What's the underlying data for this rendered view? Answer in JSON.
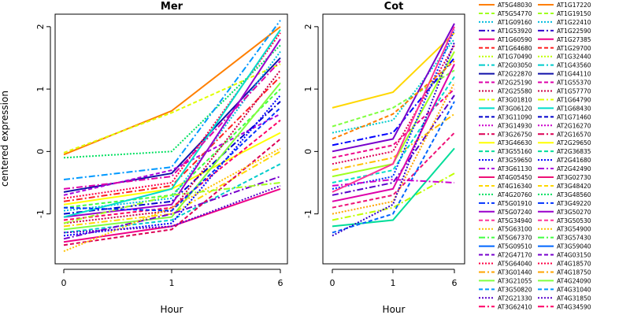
{
  "chart_data": [
    {
      "type": "line",
      "title": "Mer",
      "xlabel": "Hour",
      "ylabel": "centered expression",
      "x": [
        "0",
        "1",
        "6"
      ],
      "yticks": [
        -1,
        0,
        1,
        2
      ],
      "ylim": [
        -1.8,
        2.2
      ],
      "series": [
        {
          "values": [
            -0.05,
            0.65,
            2.0
          ]
        },
        {
          "values": [
            -0.02,
            0.62,
            1.4
          ]
        },
        {
          "values": [
            -0.1,
            0.0,
            1.7
          ]
        },
        {
          "values": [
            -0.45,
            -0.25,
            2.1
          ]
        },
        {
          "values": [
            -0.65,
            -0.35,
            1.5
          ]
        },
        {
          "values": [
            -0.7,
            -0.3,
            0.6
          ]
        },
        {
          "values": [
            -0.75,
            -0.5,
            1.9
          ]
        },
        {
          "values": [
            -0.8,
            -0.55,
            1.2
          ]
        },
        {
          "values": [
            -0.85,
            -0.6,
            0.3
          ]
        },
        {
          "values": [
            -0.9,
            -0.7,
            1.0
          ]
        },
        {
          "values": [
            -0.95,
            -0.75,
            1.6
          ]
        },
        {
          "values": [
            -1.0,
            -0.8,
            0.8
          ]
        },
        {
          "values": [
            -1.05,
            -0.85,
            1.8
          ]
        },
        {
          "values": [
            -1.1,
            -0.9,
            0.5
          ]
        },
        {
          "values": [
            -1.15,
            -0.95,
            1.3
          ]
        },
        {
          "values": [
            -1.2,
            -1.0,
            0.0
          ]
        },
        {
          "values": [
            -1.25,
            -1.05,
            1.1
          ]
        },
        {
          "values": [
            -1.3,
            -1.1,
            -0.2
          ]
        },
        {
          "values": [
            -1.35,
            -1.15,
            0.9
          ]
        },
        {
          "values": [
            -1.4,
            -1.0,
            -0.4
          ]
        },
        {
          "values": [
            -1.45,
            -1.2,
            -0.6
          ]
        },
        {
          "values": [
            -1.5,
            -1.25,
            0.2
          ]
        },
        {
          "values": [
            -1.6,
            -0.9,
            0.05
          ]
        },
        {
          "values": [
            -1.15,
            -0.7,
            -0.5
          ]
        },
        {
          "values": [
            -1.05,
            -0.6,
            1.95
          ]
        },
        {
          "values": [
            -0.9,
            -0.95,
            0.7
          ]
        },
        {
          "values": [
            -1.3,
            -1.2,
            -0.55
          ]
        },
        {
          "values": [
            -0.6,
            -0.4,
            1.45
          ]
        }
      ]
    },
    {
      "type": "line",
      "title": "Cot",
      "xlabel": "Hour",
      "x": [
        "0",
        "1",
        "6"
      ],
      "yticks": [
        -1,
        0,
        1,
        2
      ],
      "ylim": [
        -1.8,
        2.2
      ],
      "series": [
        {
          "values": [
            0.7,
            0.95,
            1.9
          ]
        },
        {
          "values": [
            0.4,
            0.7,
            1.3
          ]
        },
        {
          "values": [
            0.3,
            0.5,
            1.8
          ]
        },
        {
          "values": [
            0.1,
            0.3,
            1.5
          ]
        },
        {
          "values": [
            0.0,
            0.2,
            2.05
          ]
        },
        {
          "values": [
            -0.1,
            0.1,
            1.0
          ]
        },
        {
          "values": [
            -0.2,
            0.0,
            1.7
          ]
        },
        {
          "values": [
            -0.3,
            -0.1,
            0.6
          ]
        },
        {
          "values": [
            -0.4,
            -0.2,
            1.6
          ]
        },
        {
          "values": [
            -0.5,
            -0.3,
            1.2
          ]
        },
        {
          "values": [
            -0.6,
            -0.4,
            1.95
          ]
        },
        {
          "values": [
            -0.7,
            -0.5,
            0.9
          ]
        },
        {
          "values": [
            -0.8,
            -0.6,
            1.4
          ]
        },
        {
          "values": [
            -0.9,
            -0.7,
            0.3
          ]
        },
        {
          "values": [
            -1.0,
            -0.8,
            1.1
          ]
        },
        {
          "values": [
            -1.1,
            -0.9,
            -0.35
          ]
        },
        {
          "values": [
            -1.2,
            -1.1,
            0.05
          ]
        },
        {
          "values": [
            -1.3,
            -1.0,
            0.8
          ]
        },
        {
          "values": [
            -1.35,
            -0.85,
            1.75
          ]
        },
        {
          "values": [
            -0.55,
            -0.45,
            -0.5
          ]
        },
        {
          "values": [
            -0.65,
            -0.2,
            2.0
          ]
        },
        {
          "values": [
            0.2,
            0.6,
            1.45
          ]
        }
      ]
    }
  ],
  "legend": {
    "col1": [
      "AT5G48030",
      "AT5G54770",
      "AT1G09160",
      "AT1G53920",
      "AT1G60590",
      "AT1G64680",
      "AT1G70490",
      "AT2G03050",
      "AT2G22870",
      "AT2G25190",
      "AT2G25580",
      "AT3G01810",
      "AT3G06120",
      "AT3G11090",
      "AT3G14930",
      "AT3G26750",
      "AT3G46630",
      "AT3G55160",
      "AT3G59650",
      "AT3G61130",
      "AT4G05450",
      "AT4G16340",
      "AT4G20760",
      "AT5G01910",
      "AT5G07240",
      "AT5G34940",
      "AT5G63100",
      "AT5G67370",
      "AT5G09510",
      "AT2G47170",
      "AT5G64040",
      "AT3G01440",
      "AT3G21055",
      "AT3G50820",
      "AT2G21330",
      "AT3G62410"
    ],
    "col2": [
      "AT1G17220",
      "AT1G19150",
      "AT1G22410",
      "AT1G22590",
      "AT1G27385",
      "AT1G29700",
      "AT1G32440",
      "AT1G43560",
      "AT1G44110",
      "AT1G55370",
      "AT1G57770",
      "AT1G64790",
      "AT1G68430",
      "AT1G71460",
      "AT2G16270",
      "AT2G16570",
      "AT2G29650",
      "AT2G36835",
      "AT2G41680",
      "AT2G42490",
      "AT3G02730",
      "AT3G48420",
      "AT3G48560",
      "AT3G49220",
      "AT3G50270",
      "AT3G50530",
      "AT3G54900",
      "AT3G57430",
      "AT3G59040",
      "AT4G03150",
      "AT4G18570",
      "AT4G18750",
      "AT4G24090",
      "AT4G31040",
      "AT4G31850",
      "AT4G34590"
    ]
  },
  "colors": [
    "#ff7f00",
    "#ffa500",
    "#ffc000",
    "#ffd700",
    "#ffff00",
    "#e0ff00",
    "#c0ff00",
    "#a0ff20",
    "#80ff40",
    "#40ff40",
    "#00e060",
    "#00dd99",
    "#00ddcc",
    "#00cccc",
    "#00bbdd",
    "#0099ff",
    "#0066ff",
    "#0033ff",
    "#0000ff",
    "#0000cc",
    "#1111aa",
    "#3300cc",
    "#5500cc",
    "#7700cc",
    "#9900cc",
    "#aa00dd",
    "#cc00cc",
    "#dd00aa",
    "#ee0088",
    "#ff0066",
    "#ff0044",
    "#ff3399",
    "#ee1177",
    "#dd0055",
    "#cc0044",
    "#ff2222"
  ]
}
